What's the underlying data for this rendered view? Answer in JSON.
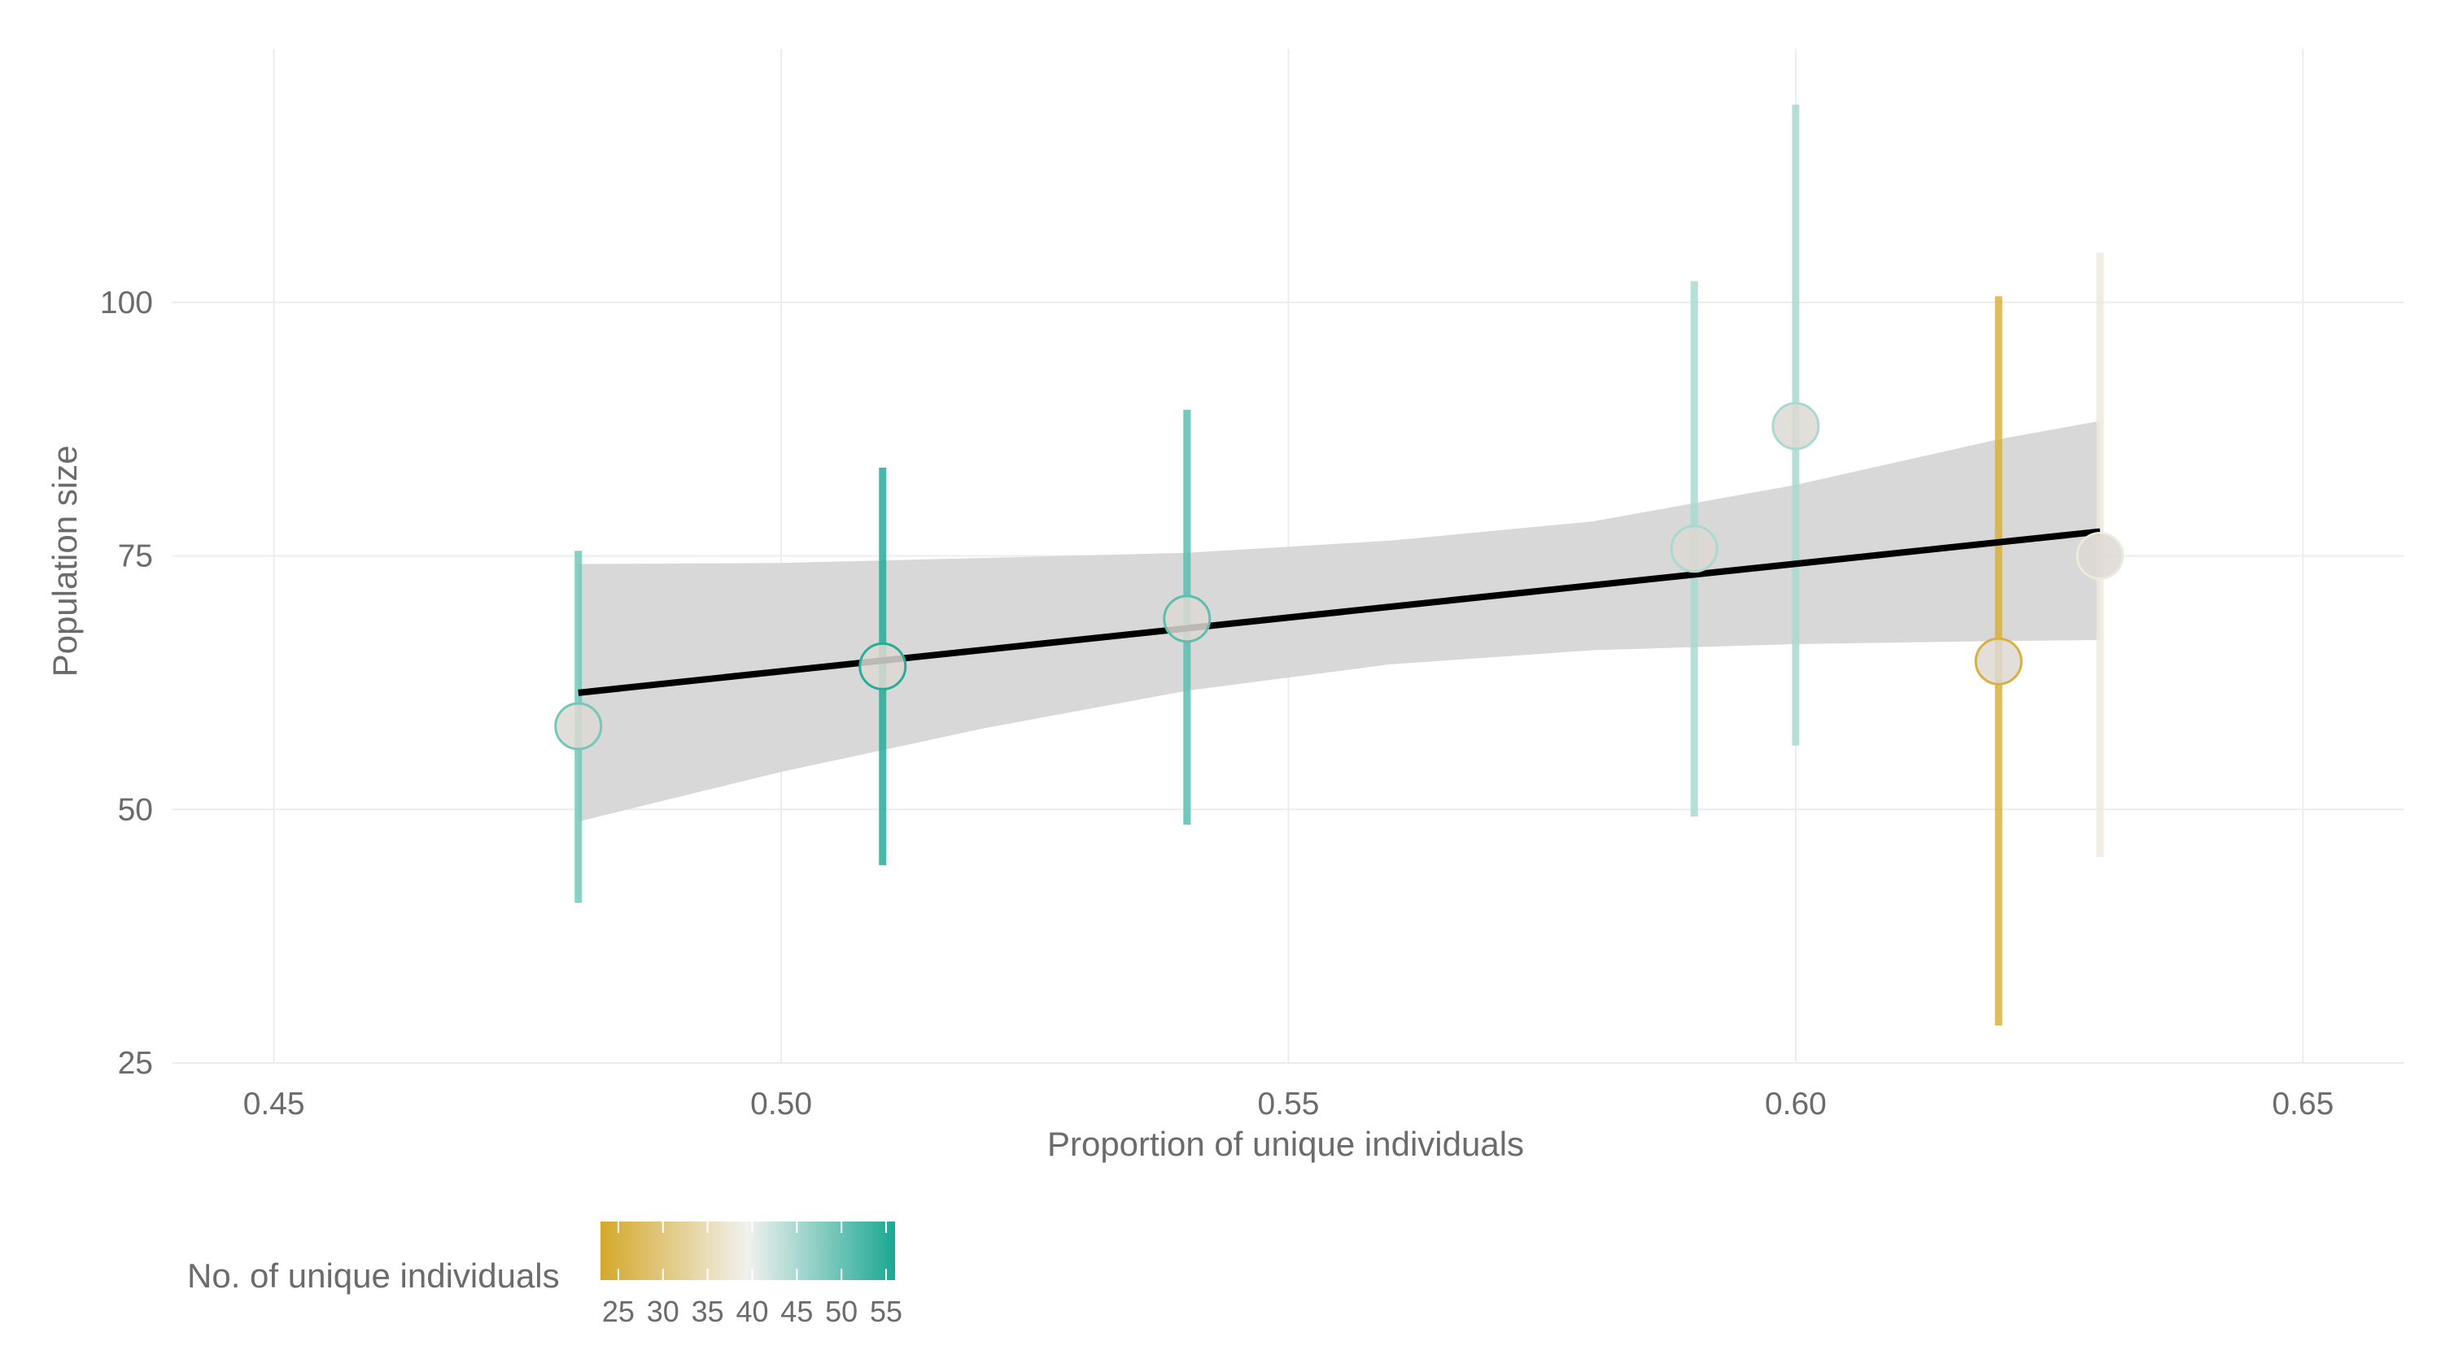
{
  "chart_data": {
    "type": "scatter",
    "title": "",
    "xlabel": "Proportion of unique individuals",
    "ylabel": "Population size",
    "xlim": [
      0.44,
      0.66
    ],
    "ylim": [
      25,
      125
    ],
    "x_ticks": [
      "0.45",
      "0.50",
      "0.55",
      "0.60",
      "0.65"
    ],
    "x_tick_values": [
      0.45,
      0.5,
      0.55,
      0.6,
      0.65
    ],
    "y_ticks": [
      "25",
      "50",
      "75",
      "100"
    ],
    "y_tick_values": [
      25,
      50,
      75,
      100
    ],
    "grid": true,
    "points": [
      {
        "x": 0.48,
        "y": 58.2,
        "lower": 40.8,
        "upper": 75.5,
        "n_unique": 49
      },
      {
        "x": 0.51,
        "y": 64.1,
        "lower": 44.5,
        "upper": 83.7,
        "n_unique": 55
      },
      {
        "x": 0.54,
        "y": 68.8,
        "lower": 48.5,
        "upper": 89.4,
        "n_unique": 51
      },
      {
        "x": 0.59,
        "y": 75.7,
        "lower": 49.3,
        "upper": 102.1,
        "n_unique": 45
      },
      {
        "x": 0.6,
        "y": 87.8,
        "lower": 56.3,
        "upper": 119.5,
        "n_unique": 45
      },
      {
        "x": 0.62,
        "y": 64.6,
        "lower": 28.7,
        "upper": 100.6,
        "n_unique": 25
      },
      {
        "x": 0.63,
        "y": 75.0,
        "lower": 45.3,
        "upper": 104.9,
        "n_unique": 38
      }
    ],
    "trend_line": {
      "x": [
        0.48,
        0.63
      ],
      "y": [
        61.5,
        77.4
      ]
    },
    "confidence_band": {
      "x": [
        0.48,
        0.5,
        0.52,
        0.54,
        0.56,
        0.58,
        0.6,
        0.62,
        0.63
      ],
      "lower": [
        48.8,
        53.7,
        58.0,
        61.7,
        64.3,
        65.7,
        66.3,
        66.6,
        66.7
      ],
      "upper": [
        74.2,
        74.3,
        74.8,
        75.3,
        76.5,
        78.4,
        82.0,
        86.5,
        88.3
      ]
    },
    "legend": {
      "title": "No. of unique individuals",
      "position": "bottom-left",
      "ticks": [
        "25",
        "30",
        "35",
        "40",
        "45",
        "50",
        "55"
      ],
      "tick_values": [
        25,
        30,
        35,
        40,
        45,
        50,
        55
      ],
      "range": [
        23,
        56
      ]
    },
    "colors": {
      "low": "#d4a82a",
      "mid": "#f1f1ef",
      "high": "#1aa893",
      "point_fill": "#ddd8d2",
      "band": "#d6d6d6",
      "trend": "#000000",
      "grid": "#ececec"
    }
  }
}
